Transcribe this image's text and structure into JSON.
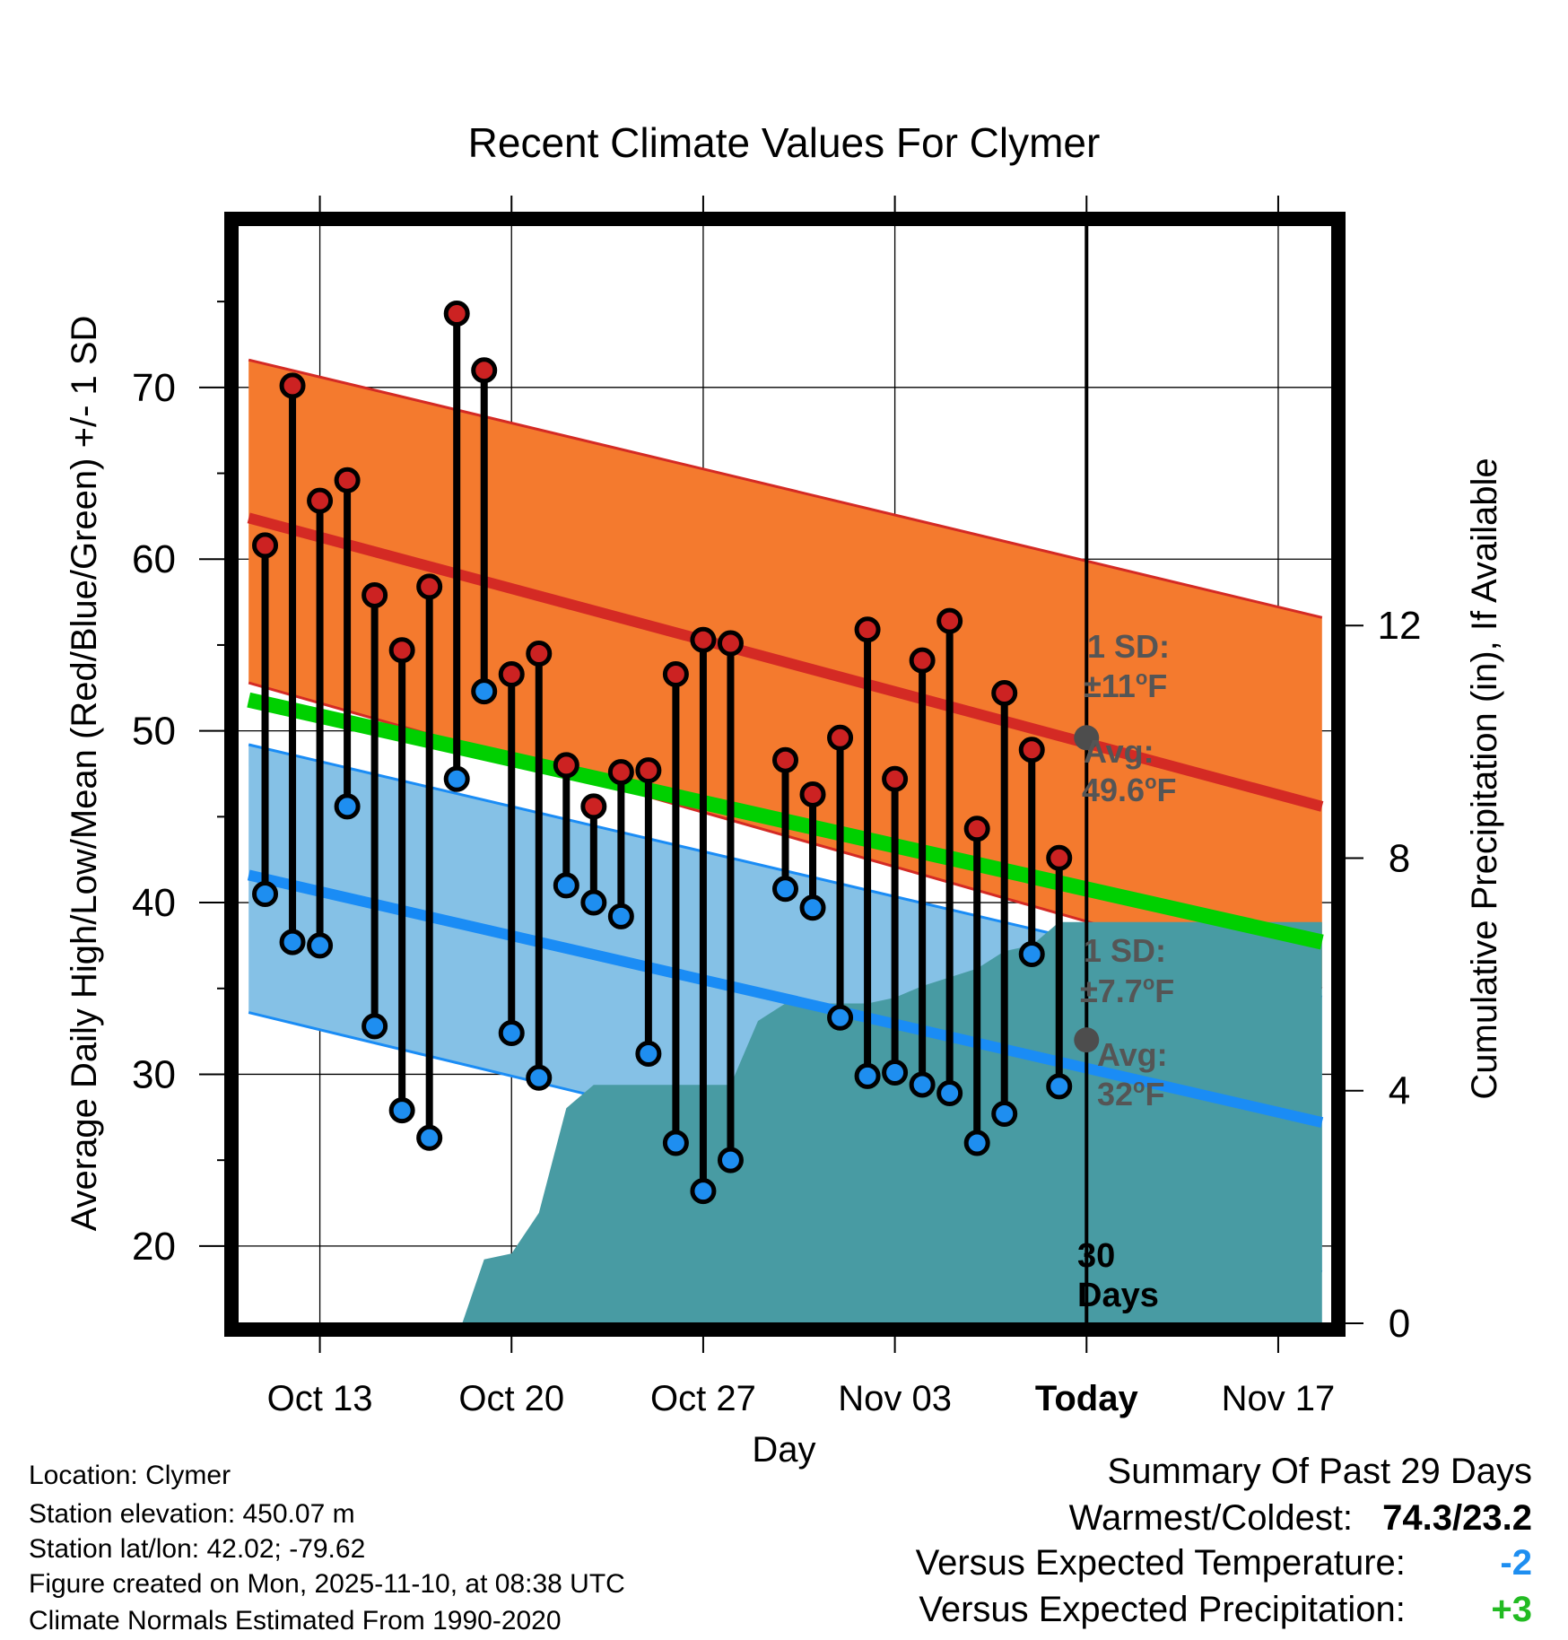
{
  "chart_data": {
    "type": "line",
    "title": "Recent Climate Values For Clymer",
    "xlabel": "Day",
    "ylabel": "Average Daily High/Low/Mean (Red/Blue/Green) +/- 1 SD",
    "y2label": "Cumulative Precipitation (in), If Available",
    "x_unit": "day offset from Oct 13",
    "xlim": [
      -3,
      37
    ],
    "ylim": [
      15.5,
      79.5
    ],
    "y_ticks": [
      20,
      30,
      40,
      50,
      60,
      70
    ],
    "y2lim": [
      0,
      18.9
    ],
    "y2_ticks": [
      0,
      4,
      8,
      12
    ],
    "x_ticks": [
      {
        "x": 0,
        "label": "Oct 13"
      },
      {
        "x": 7,
        "label": "Oct 20"
      },
      {
        "x": 14,
        "label": "Oct 27"
      },
      {
        "x": 21,
        "label": "Nov 03"
      },
      {
        "x": 28,
        "label": "Today"
      },
      {
        "x": 35,
        "label": "Nov 17"
      }
    ],
    "normals": {
      "high_mean": [
        [
          -2.6,
          62.4
        ],
        [
          36.6,
          45.6
        ]
      ],
      "high_upper": [
        [
          -2.6,
          71.6
        ],
        [
          36.6,
          56.6
        ]
      ],
      "high_lower": [
        [
          -2.6,
          52.8
        ],
        [
          36.6,
          35.0
        ]
      ],
      "low_mean": [
        [
          -2.6,
          41.6
        ],
        [
          36.6,
          27.2
        ]
      ],
      "low_upper": [
        [
          -2.6,
          49.2
        ],
        [
          36.6,
          34.5
        ]
      ],
      "low_lower": [
        [
          -2.6,
          33.6
        ],
        [
          36.6,
          18.5
        ]
      ],
      "mean_line": [
        [
          -2.6,
          51.8
        ],
        [
          36.6,
          37.7
        ]
      ]
    },
    "precip": [
      [
        -2.6,
        0
      ],
      [
        5.2,
        0
      ],
      [
        6.0,
        1.1
      ],
      [
        7.0,
        1.2
      ],
      [
        8.0,
        1.9
      ],
      [
        9.0,
        3.7
      ],
      [
        10.0,
        4.1
      ],
      [
        15.0,
        4.1
      ],
      [
        16.0,
        5.2
      ],
      [
        17.0,
        5.5
      ],
      [
        18.0,
        5.5
      ],
      [
        20.0,
        5.5
      ],
      [
        21.0,
        5.6
      ],
      [
        22.0,
        5.8
      ],
      [
        24.0,
        6.1
      ],
      [
        25.0,
        6.4
      ],
      [
        26.0,
        6.5
      ],
      [
        27.0,
        6.9
      ],
      [
        36.6,
        6.9
      ]
    ],
    "series": [
      {
        "name": "High",
        "x": [
          -2,
          -1,
          0,
          1,
          2,
          3,
          4,
          5,
          6,
          7,
          8,
          9,
          10,
          11,
          12,
          13,
          14,
          15,
          16,
          17,
          18,
          19,
          20,
          21,
          22,
          23,
          24,
          25,
          26,
          27
        ],
        "values": [
          60.8,
          70.1,
          63.4,
          64.6,
          57.9,
          54.7,
          58.4,
          74.3,
          71.0,
          53.3,
          54.5,
          48.0,
          45.6,
          47.6,
          47.7,
          53.3,
          55.3,
          55.1,
          null,
          48.3,
          46.3,
          49.6,
          55.9,
          47.2,
          54.1,
          56.4,
          44.3,
          52.2,
          48.9,
          42.6
        ]
      },
      {
        "name": "Low",
        "x": [
          -2,
          -1,
          0,
          1,
          2,
          3,
          4,
          5,
          6,
          7,
          8,
          9,
          10,
          11,
          12,
          13,
          14,
          15,
          16,
          17,
          18,
          19,
          20,
          21,
          22,
          23,
          24,
          25,
          26,
          27
        ],
        "values": [
          40.5,
          37.7,
          37.5,
          45.6,
          32.8,
          27.9,
          26.3,
          47.2,
          52.3,
          32.4,
          29.8,
          41.0,
          40.0,
          39.2,
          31.2,
          26.0,
          23.2,
          25.0,
          null,
          40.8,
          39.7,
          33.3,
          29.9,
          30.1,
          29.4,
          28.9,
          26.0,
          27.7,
          37.0,
          29.3
        ]
      }
    ],
    "annotations": {
      "high_sd_label": "1 SD:",
      "high_sd_value": "±11",
      "high_avg_label": "Avg:",
      "high_avg_value": "49.6",
      "low_sd_label": "1 SD:",
      "low_sd_value": "±7.7",
      "low_avg_label": "Avg:",
      "low_avg_value": "32",
      "deg_unit": "o",
      "f_unit": "F",
      "days_number": "30",
      "days_label": "Days",
      "avg_high_point": 49.6,
      "avg_low_point": 32
    },
    "colors": {
      "high_band": "#f47a2e",
      "high_line": "#d42a24",
      "low_band": "#85c1e6",
      "low_line": "#1a8cf5",
      "mean_line": "#00d000",
      "overlap": "#9e1212",
      "precip": "#489ba3",
      "high_dot": "#cc2222",
      "low_dot": "#1e8ef0",
      "avg_dot": "#4d4d4d",
      "annotation": "#555555"
    }
  },
  "info": {
    "location": "Location: Clymer",
    "elevation": "Station elevation: 450.07 m",
    "latlon": "Station lat/lon: 42.02; -79.62",
    "created": "Figure created on Mon, 2025-11-10, at 08:38 UTC",
    "normals": "Climate Normals Estimated From 1990-2020"
  },
  "summary": {
    "title": "Summary Of Past 29 Days",
    "warm_cold_label": "Warmest/Coldest:",
    "warm_cold_value": "74.3/23.2",
    "temp_label": "Versus Expected Temperature:",
    "temp_value": "-2",
    "temp_color": "#1e8ef0",
    "precip_label": "Versus Expected Precipitation:",
    "precip_value": "+3",
    "precip_color": "#22bb22"
  }
}
